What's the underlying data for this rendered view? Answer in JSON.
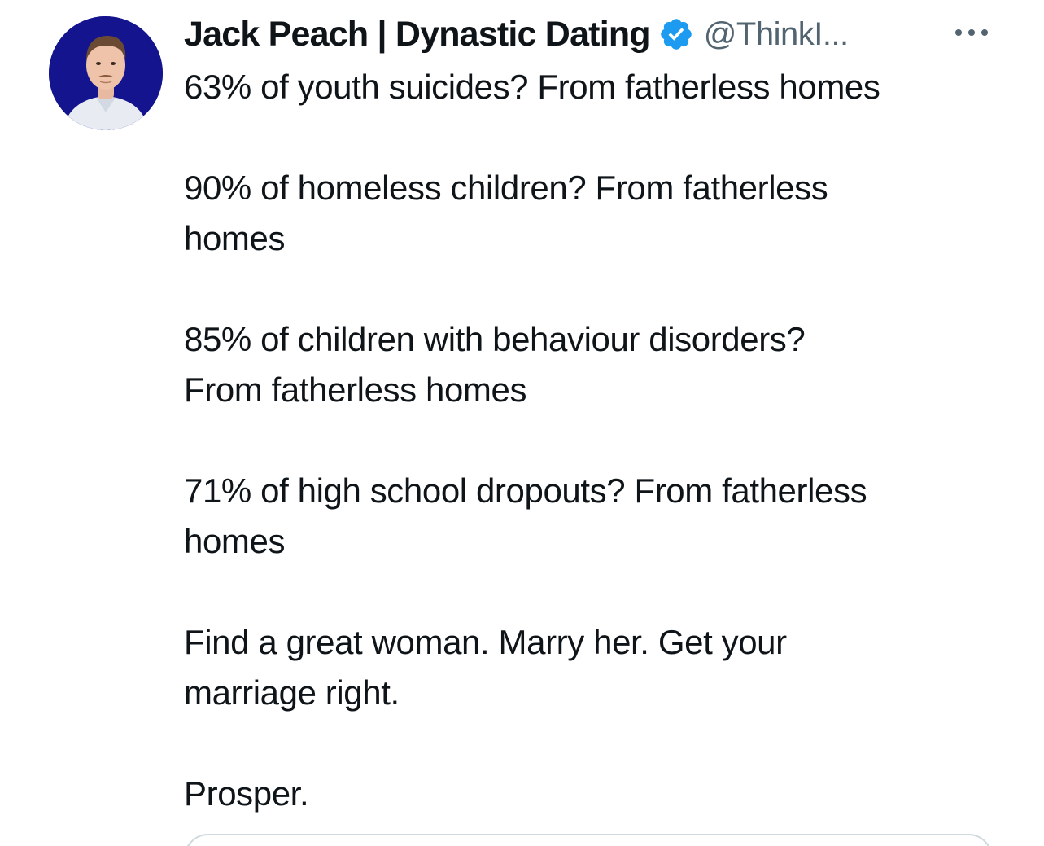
{
  "author": {
    "display_name": "Jack Peach | Dynastic Dating",
    "handle": "@ThinkI...",
    "verified_icon": "verified-badge-icon",
    "avatar": "profile-avatar"
  },
  "actions": {
    "more_icon": "more-options-icon"
  },
  "tweet": {
    "paragraphs": [
      [
        "63% of youth suicides? From fatherless homes"
      ],
      [
        "90% of homeless children? From fatherless",
        "homes"
      ],
      [
        "85% of children with behaviour disorders?",
        "From fatherless homes"
      ],
      [
        "71% of high school dropouts? From fatherless",
        "homes"
      ],
      [
        "Find a great woman. Marry her. Get your",
        "marriage right."
      ],
      [
        "Prosper."
      ]
    ]
  },
  "colors": {
    "text": "#0f1419",
    "secondary": "#536471",
    "verified": "#1d9bf0",
    "avatar_bg": "#14148f",
    "border": "#cfd9de"
  }
}
